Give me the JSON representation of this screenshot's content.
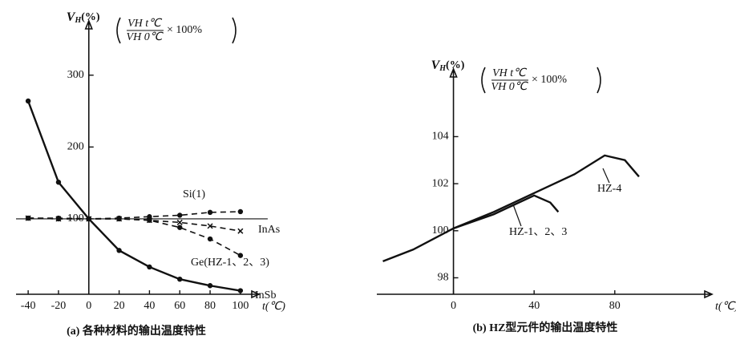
{
  "chart_data": [
    {
      "type": "line",
      "caption": "(a) 各种材料的输出温度特性",
      "y_label": {
        "main": "V",
        "sub": "H",
        "unit": "(%)"
      },
      "formula": {
        "numerator": "VH t℃",
        "denominator": "VH 0℃",
        "factor": "× 100%"
      },
      "x_label": "t(℃)",
      "x": [
        -40,
        -20,
        0,
        20,
        40,
        60,
        80,
        100
      ],
      "xlim": [
        -48,
        108
      ],
      "ylim": [
        -5,
        360
      ],
      "xticks": [
        -40,
        -20,
        0,
        20,
        40,
        60,
        80,
        100
      ],
      "yticks": [
        100,
        200,
        300
      ],
      "series": [
        {
          "name": "Si(1)",
          "color": "#111",
          "dash": true,
          "marker": "dot",
          "values": [
            101,
            101,
            100,
            101,
            103,
            105,
            109,
            110
          ]
        },
        {
          "name": "InAs",
          "color": "#111",
          "dash": true,
          "marker": "x",
          "values": [
            101,
            100,
            100,
            100,
            98,
            95,
            90,
            83
          ]
        },
        {
          "name": "Ge(HZ-1、2、3)",
          "color": "#111",
          "dash": true,
          "marker": "dot",
          "values": [
            101,
            100,
            100,
            100,
            98,
            88,
            72,
            49
          ]
        },
        {
          "name": "InSb",
          "color": "#111",
          "dash": false,
          "marker": "dot",
          "values": [
            264,
            151,
            100,
            56,
            33,
            16,
            7,
            0
          ]
        }
      ]
    },
    {
      "type": "line",
      "caption": "(b) HZ型元件的输出温度特性",
      "y_label": {
        "main": "V",
        "sub": "H",
        "unit": "(%)"
      },
      "formula": {
        "numerator": "VH t℃",
        "denominator": "VH 0℃",
        "factor": "× 100%"
      },
      "x_label": "t(℃)",
      "xlim": [
        -38,
        125
      ],
      "ylim": [
        97.3,
        106.4
      ],
      "xticks": [
        0,
        40,
        80
      ],
      "yticks": [
        98,
        100,
        102,
        104
      ],
      "series": [
        {
          "name": "HZ-4",
          "color": "#111",
          "dash": false,
          "marker": "none",
          "x": [
            -35,
            -20,
            0,
            20,
            40,
            60,
            75,
            85,
            92
          ],
          "values": [
            98.7,
            99.2,
            100.1,
            100.8,
            101.6,
            102.4,
            103.2,
            103.0,
            102.3
          ]
        },
        {
          "name": "HZ-1、2、3",
          "color": "#111",
          "dash": false,
          "marker": "none",
          "x": [
            0,
            20,
            30,
            40,
            48,
            52
          ],
          "values": [
            100.1,
            100.7,
            101.1,
            101.5,
            101.2,
            100.8
          ]
        }
      ]
    }
  ]
}
